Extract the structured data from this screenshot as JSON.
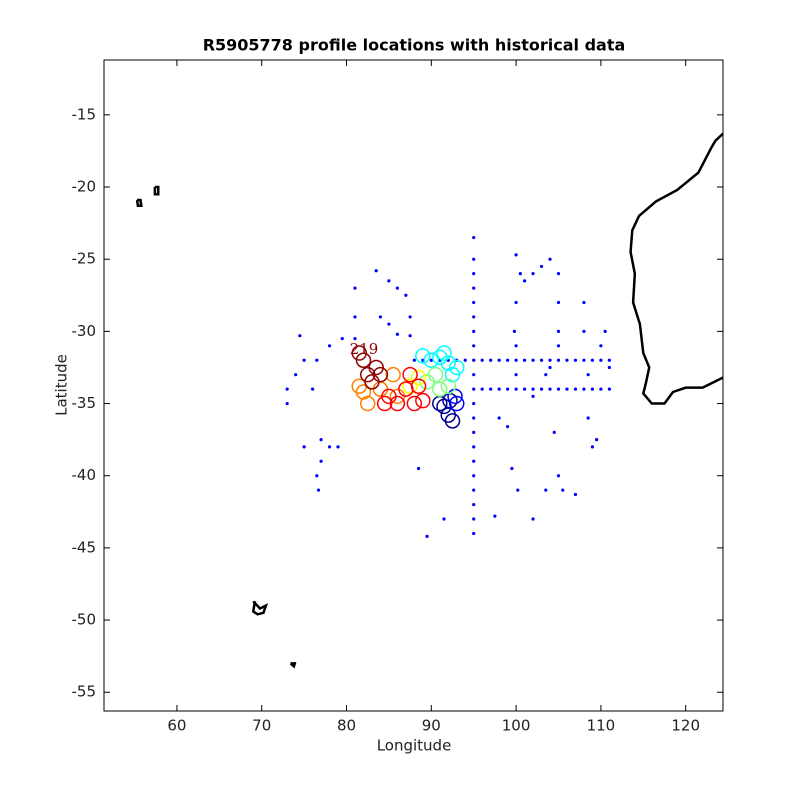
{
  "chart_data": {
    "type": "scatter",
    "title": "R5905778 profile locations with historical data",
    "xlabel": "Longitude",
    "ylabel": "Latitude",
    "xlim": [
      51.4,
      124.4
    ],
    "ylim": [
      -56.3,
      -11.2
    ],
    "xticks": [
      60,
      70,
      80,
      90,
      100,
      110,
      120
    ],
    "yticks": [
      -15,
      -20,
      -25,
      -30,
      -35,
      -40,
      -45,
      -50,
      -55
    ],
    "annotations": [
      "219"
    ],
    "historical": {
      "color": "#0000ff",
      "x": [
        95,
        95,
        95,
        95,
        95,
        95,
        95,
        95,
        95,
        95,
        95,
        95,
        95,
        95,
        95,
        95,
        95,
        95,
        95,
        95,
        95,
        88,
        89,
        90,
        91,
        92,
        93,
        94,
        96,
        97,
        98,
        99,
        100,
        101,
        102,
        103,
        104,
        105,
        106,
        107,
        108,
        109,
        110,
        111,
        96,
        97,
        98,
        99,
        100,
        101,
        102,
        103,
        104,
        105,
        106,
        107,
        108,
        109,
        110,
        111,
        100,
        100.5,
        101,
        102,
        103,
        104,
        105,
        105,
        105,
        105,
        100,
        99.8,
        100,
        81,
        81,
        81,
        83.5,
        85,
        86,
        87,
        87.5,
        87.5,
        85,
        84,
        86,
        75,
        76.5,
        78,
        79.5,
        74,
        73,
        73,
        74.5,
        76,
        75,
        77,
        77,
        76.5,
        76.7,
        78,
        79,
        88.5,
        89.5,
        91.5,
        97.5,
        99,
        99.5,
        100.2,
        102,
        103.5,
        105,
        105.5,
        107,
        104.5,
        108,
        108,
        108.5,
        108.5,
        109,
        109.5,
        110,
        110.5,
        111,
        104,
        103.5,
        102,
        100,
        98
      ],
      "y": [
        -23.5,
        -25,
        -26,
        -27,
        -28,
        -29,
        -30,
        -31,
        -32,
        -33,
        -34,
        -35,
        -36,
        -37,
        -38,
        -39,
        -40,
        -41,
        -42,
        -43,
        -44,
        -32,
        -32,
        -32,
        -32,
        -32,
        -32,
        -32,
        -32,
        -32,
        -32,
        -32,
        -32,
        -32,
        -32,
        -32,
        -32,
        -32,
        -32,
        -32,
        -32,
        -32,
        -32,
        -32,
        -34,
        -34,
        -34,
        -34,
        -34,
        -34,
        -34,
        -34,
        -34,
        -34,
        -34,
        -34,
        -34,
        -34,
        -34,
        -34,
        -24.7,
        -26,
        -26.5,
        -26,
        -25.5,
        -25,
        -26,
        -28,
        -30,
        -31,
        -28,
        -30,
        -31,
        -27,
        -29,
        -30.5,
        -25.8,
        -26.5,
        -27,
        -27.5,
        -29,
        -30.3,
        -29.5,
        -29,
        -30.2,
        -32,
        -32,
        -31,
        -30.5,
        -33,
        -34,
        -35,
        -30.3,
        -34,
        -38,
        -37.5,
        -39,
        -40,
        -41,
        -38,
        -38,
        -39.5,
        -44.2,
        -43,
        -42.8,
        -36.6,
        -39.5,
        -41,
        -43,
        -41,
        -40,
        -41,
        -41.3,
        -37,
        -28,
        -30,
        -33,
        -36,
        -38,
        -37.5,
        -31,
        -30,
        -32.5,
        -32.5,
        -33,
        -34.5,
        -33,
        -36
      ]
    },
    "series": [
      {
        "color": "#00008f",
        "x": [
          91.5,
          92,
          92.5,
          92.2,
          91
        ],
        "y": [
          -35.2,
          -35.8,
          -36.2,
          -34.8,
          -35
        ]
      },
      {
        "color": "#0000ff",
        "x": [
          93,
          92.8
        ],
        "y": [
          -35,
          -34.5
        ]
      },
      {
        "color": "#00ffff",
        "x": [
          89,
          90,
          91,
          92,
          93,
          92.5,
          91.5
        ],
        "y": [
          -31.7,
          -32,
          -31.8,
          -32.2,
          -32.5,
          -33,
          -31.5
        ]
      },
      {
        "color": "#7fff7f",
        "x": [
          89.5,
          90.5,
          91,
          92
        ],
        "y": [
          -33.5,
          -33,
          -34,
          -33.8
        ]
      },
      {
        "color": "#ffff00",
        "x": [
          88.5,
          87.5
        ],
        "y": [
          -33.2,
          -33.8
        ]
      },
      {
        "color": "#ff8000",
        "x": [
          82,
          81.5,
          84,
          85.5,
          86,
          82.5
        ],
        "y": [
          -34.2,
          -33.8,
          -34,
          -33,
          -34.5,
          -35
        ]
      },
      {
        "color": "#ff0000",
        "x": [
          86,
          87,
          88,
          89,
          87.5,
          85,
          84.5,
          88.5
        ],
        "y": [
          -35,
          -34,
          -35,
          -34.8,
          -33,
          -34.5,
          -35,
          -33.8
        ]
      },
      {
        "color": "#8f0000",
        "x": [
          82,
          82.5,
          83,
          84,
          83.5,
          81.5
        ],
        "y": [
          -32,
          -33,
          -33.5,
          -33,
          -32.5,
          -31.5
        ]
      }
    ],
    "coastlines": [
      {
        "x": [
          124.4,
          123.5,
          123,
          121.5,
          119,
          116.5,
          114.5,
          113.7,
          113.5,
          114,
          113.8,
          114.6,
          115,
          115.7,
          115.3,
          115,
          116,
          117.5,
          118.5,
          120,
          122,
          124.4
        ],
        "y": [
          -16.3,
          -16.8,
          -17.3,
          -19,
          -20.2,
          -21,
          -22,
          -23,
          -24.5,
          -26,
          -28,
          -29.5,
          -31.5,
          -32.5,
          -33.6,
          -34.3,
          -35,
          -35,
          -34.2,
          -33.9,
          -33.9,
          -33.2
        ]
      },
      {
        "x": [
          55.3,
          55.7,
          55.8,
          55.4,
          55.3
        ],
        "y": [
          -20.9,
          -20.9,
          -21.3,
          -21.3,
          -20.9
        ]
      },
      {
        "x": [
          57.4,
          57.8,
          57.8,
          57.4,
          57.4
        ],
        "y": [
          -20,
          -20,
          -20.5,
          -20.5,
          -20
        ]
      },
      {
        "x": [
          69,
          69.8,
          70.5,
          70.2,
          69.5,
          69,
          69.2
        ],
        "y": [
          -48.7,
          -49.2,
          -49,
          -49.5,
          -49.6,
          -49.4,
          -48.7
        ]
      },
      {
        "x": [
          73.4,
          73.9,
          73.8,
          73.4
        ],
        "y": [
          -53,
          -53,
          -53.2,
          -53
        ]
      }
    ]
  }
}
